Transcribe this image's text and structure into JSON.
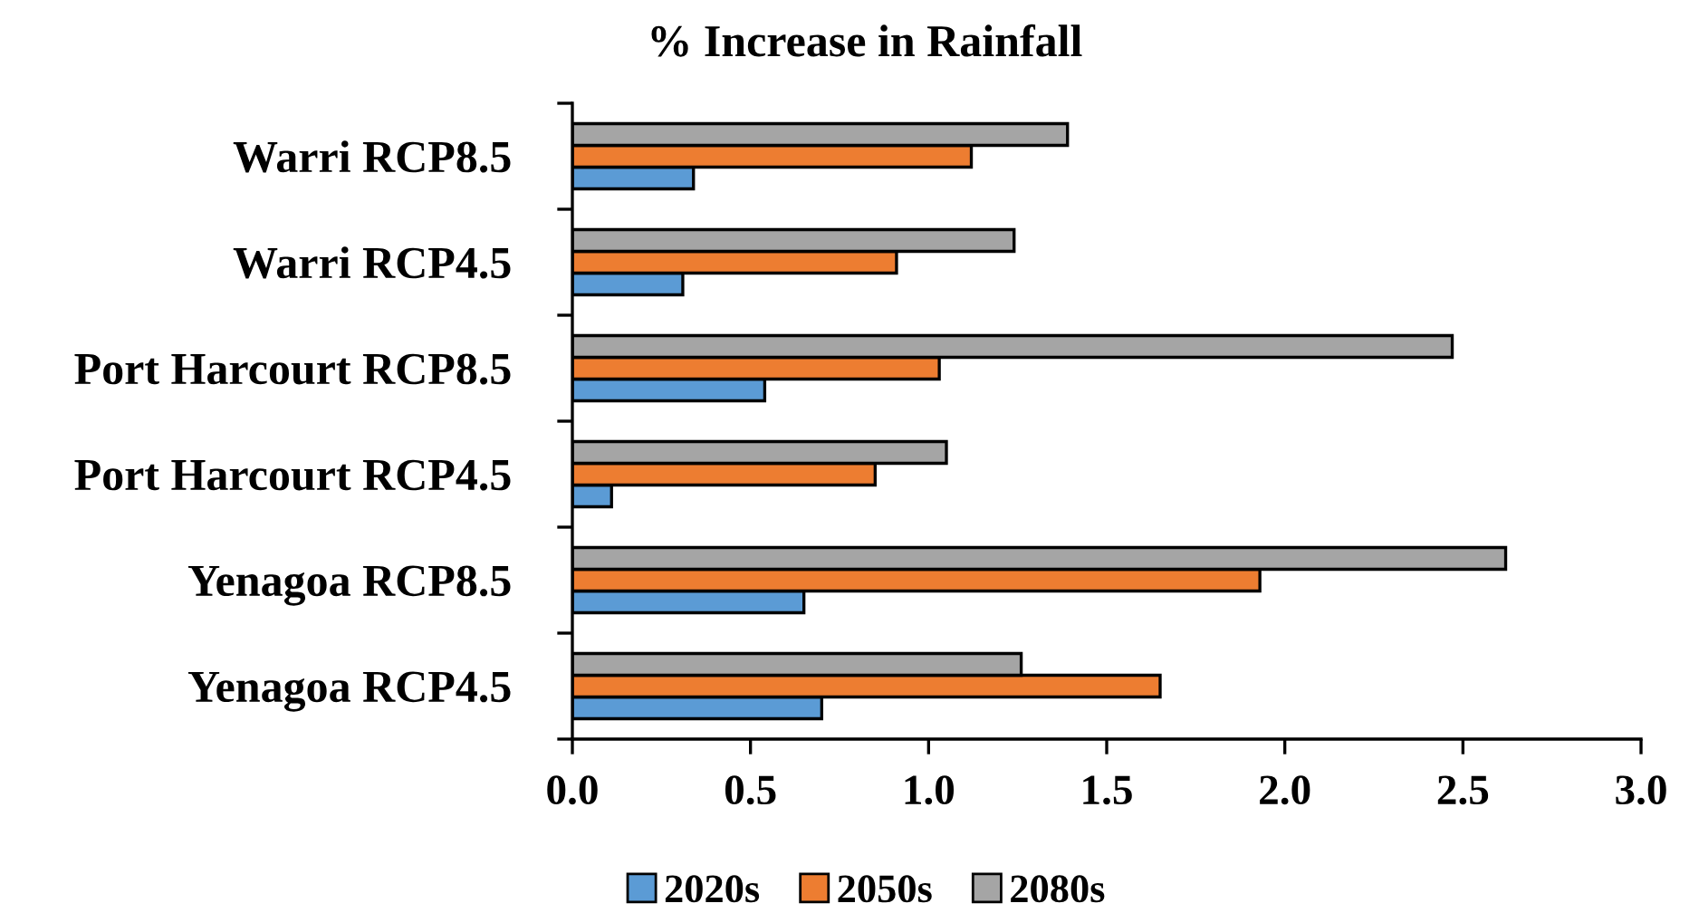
{
  "chart_data": {
    "type": "bar",
    "orientation": "horizontal",
    "title": "% Increase in Rainfall",
    "categories": [
      "Warri RCP8.5",
      "Warri RCP4.5",
      "Port Harcourt RCP8.5",
      "Port Harcourt RCP4.5",
      "Yenagoa RCP8.5",
      "Yenagoa RCP4.5"
    ],
    "series": [
      {
        "name": "2020s",
        "color": "#5b9bd5",
        "values": [
          0.34,
          0.31,
          0.54,
          0.11,
          0.65,
          0.7
        ]
      },
      {
        "name": "2050s",
        "color": "#ed7d31",
        "values": [
          1.12,
          0.91,
          1.03,
          0.85,
          1.93,
          1.65
        ]
      },
      {
        "name": "2080s",
        "color": "#a5a5a5",
        "values": [
          1.39,
          1.24,
          2.47,
          1.05,
          2.62,
          1.26
        ]
      }
    ],
    "xlim": [
      0,
      3
    ],
    "xticks": [
      {
        "value": 0,
        "label": "0.0"
      },
      0.5,
      {
        "value": 1,
        "label": "1.0"
      },
      1.5,
      {
        "value": 2,
        "label": "2.0"
      },
      2.5,
      {
        "value": 3,
        "label": "3.0"
      }
    ],
    "legend": "bottom"
  }
}
